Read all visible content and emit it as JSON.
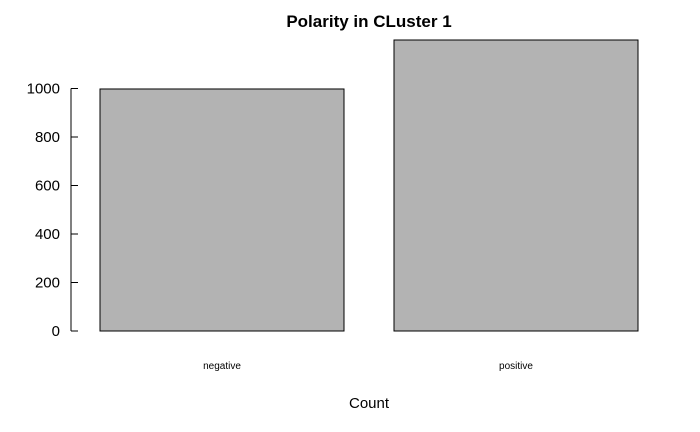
{
  "chart_data": {
    "type": "bar",
    "title": "Polarity in CLuster 1",
    "xlabel": "Count",
    "ylabel": "",
    "categories": [
      "negative",
      "positive"
    ],
    "values": [
      998,
      1200
    ],
    "ylim": [
      0,
      1200
    ],
    "yticks": [
      0,
      200,
      400,
      600,
      800,
      1000
    ],
    "bar_color": "#b3b3b3",
    "bar_edge_color": "#000000",
    "grid": false,
    "legend": "none"
  }
}
